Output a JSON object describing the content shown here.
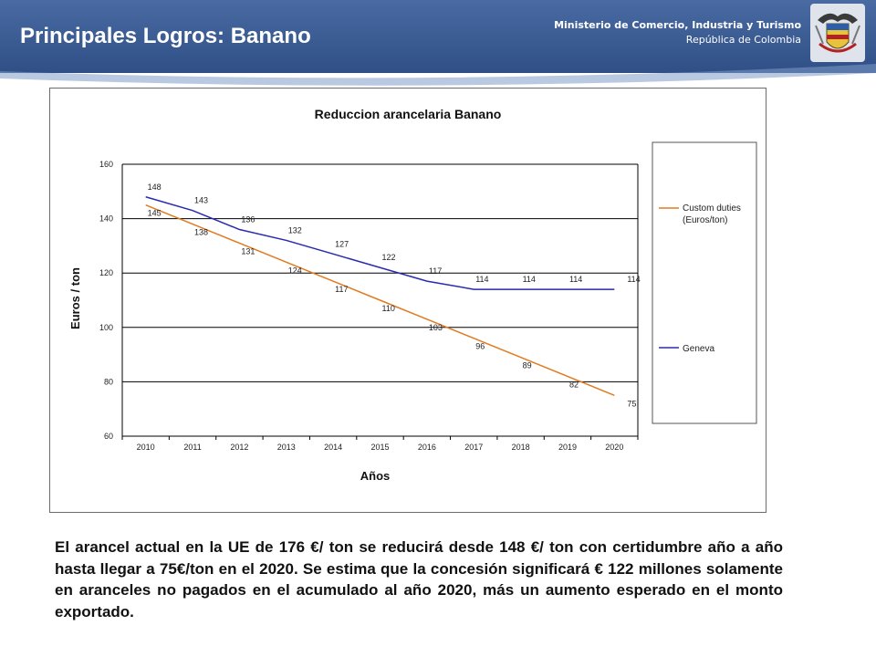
{
  "header": {
    "title": "Principales Logros: Banano",
    "ministry_line1": "Ministerio de Comercio, Industria y Turismo",
    "ministry_line2": "República de Colombia",
    "crest_icon": "colombia-coat-of-arms-icon",
    "band_color": "#35558d"
  },
  "chart_data": {
    "type": "line",
    "title": "Reduccion arancelaria Banano",
    "xlabel": "Años",
    "ylabel": "Euros / ton",
    "ylim": [
      60,
      160
    ],
    "yticks": [
      60,
      80,
      100,
      120,
      140,
      160
    ],
    "x": [
      2010,
      2011,
      2012,
      2013,
      2014,
      2015,
      2016,
      2017,
      2018,
      2019,
      2020
    ],
    "grid": true,
    "legend_position": "right",
    "series": [
      {
        "name": "Custom duties (Euros/ton)",
        "color": "#e07b1f",
        "values": [
          145,
          138,
          131,
          124,
          117,
          110,
          103,
          96,
          89,
          82,
          75
        ],
        "labels": [
          "145",
          "138",
          "131",
          "124",
          "117",
          "110",
          "103",
          "96",
          "89",
          "82",
          "75"
        ]
      },
      {
        "name": "Geneva",
        "color": "#2a2ab0",
        "values": [
          148,
          143,
          136,
          132,
          127,
          122,
          117,
          114,
          114,
          114,
          114
        ],
        "labels": [
          "148",
          "143",
          "136",
          "132",
          "127",
          "122",
          "117",
          "114",
          "114",
          "114",
          "114"
        ]
      }
    ],
    "legend_labels": {
      "custom_line1": "Custom duties",
      "custom_line2": "(Euros/ton)",
      "geneva": "Geneva"
    }
  },
  "body": {
    "paragraph": "El arancel actual en la UE de 176 €/ ton se reducirá desde 148 €/ ton con certidumbre año a año hasta llegar a 75€/ton en el 2020. Se estima que la concesión  significará € 122 millones solamente en aranceles no pagados en el acumulado al año 2020, más un aumento esperado en el monto exportado."
  }
}
